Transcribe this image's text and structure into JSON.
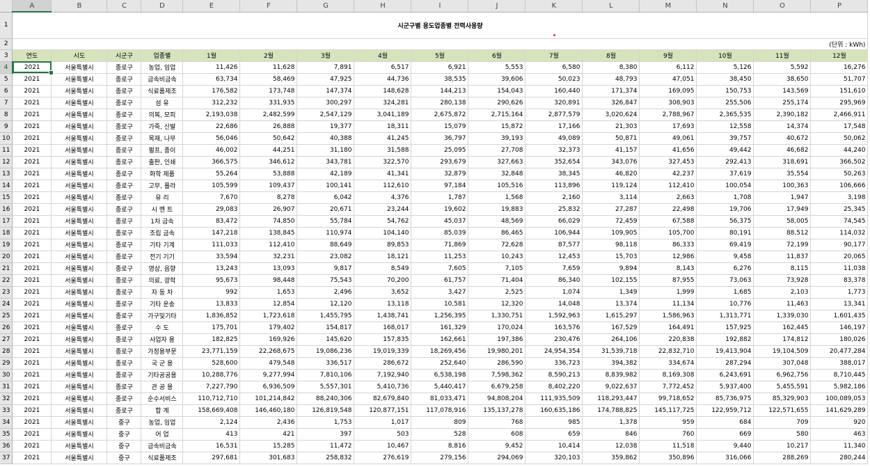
{
  "sheet": {
    "title": "시군구별 용도업종별 전력사용량",
    "unit_note": "(단위 : kWh)",
    "column_letters": [
      "A",
      "B",
      "C",
      "D",
      "E",
      "F",
      "G",
      "H",
      "I",
      "J",
      "K",
      "L",
      "M",
      "N",
      "O",
      "P"
    ],
    "row_numbers": [
      "1",
      "2",
      "3",
      "4",
      "5",
      "6",
      "7",
      "8",
      "9",
      "10",
      "11",
      "12",
      "13",
      "14",
      "15",
      "16",
      "17",
      "18",
      "19",
      "20",
      "21",
      "22",
      "23",
      "24",
      "25",
      "26",
      "27",
      "28",
      "29",
      "30",
      "31",
      "32",
      "33",
      "34",
      "35",
      "36",
      "37"
    ],
    "headers": [
      "연도",
      "시도",
      "시군구",
      "업종별",
      "1월",
      "2월",
      "3월",
      "4월",
      "5월",
      "6월",
      "7월",
      "8월",
      "9월",
      "10월",
      "11월",
      "12월"
    ],
    "rows": [
      [
        "2021",
        "서울특별시",
        "종로구",
        "농업, 임업",
        "11,426",
        "11,628",
        "7,891",
        "6,517",
        "6,921",
        "5,553",
        "6,580",
        "8,380",
        "6,112",
        "5,126",
        "5,592",
        "16,276"
      ],
      [
        "2021",
        "서울특별시",
        "종로구",
        "금속비금속",
        "63,734",
        "58,469",
        "47,925",
        "44,736",
        "38,535",
        "39,606",
        "50,023",
        "48,793",
        "47,051",
        "38,450",
        "38,650",
        "51,707"
      ],
      [
        "2021",
        "서울특별시",
        "종로구",
        "식료품제조",
        "176,582",
        "173,748",
        "147,374",
        "148,628",
        "144,213",
        "154,043",
        "160,440",
        "171,374",
        "169,095",
        "150,753",
        "143,569",
        "151,610"
      ],
      [
        "2021",
        "서울특별시",
        "종로구",
        "섬      유",
        "312,232",
        "331,935",
        "300,297",
        "324,281",
        "280,138",
        "290,626",
        "320,891",
        "326,847",
        "308,903",
        "255,506",
        "255,174",
        "295,969"
      ],
      [
        "2021",
        "서울특별시",
        "종로구",
        "의복, 모피",
        "2,193,038",
        "2,482,599",
        "2,547,129",
        "3,041,189",
        "2,675,872",
        "2,715,164",
        "2,877,579",
        "3,020,624",
        "2,788,967",
        "2,365,535",
        "2,390,182",
        "2,466,911"
      ],
      [
        "2021",
        "서울특별시",
        "종로구",
        "가죽, 신발",
        "22,686",
        "26,888",
        "19,377",
        "18,311",
        "15,079",
        "15,872",
        "17,166",
        "21,303",
        "17,693",
        "12,558",
        "14,374",
        "17,548"
      ],
      [
        "2021",
        "서울특별시",
        "종로구",
        "목재, 나무",
        "56,046",
        "50,642",
        "40,388",
        "41,245",
        "36,797",
        "39,193",
        "49,089",
        "50,871",
        "49,061",
        "39,757",
        "40,672",
        "50,062"
      ],
      [
        "2021",
        "서울특별시",
        "종로구",
        "펄프, 종이",
        "46,002",
        "44,251",
        "31,180",
        "31,588",
        "25,095",
        "27,708",
        "32,373",
        "41,157",
        "41,656",
        "49,442",
        "46,682",
        "44,240"
      ],
      [
        "2021",
        "서울특별시",
        "종로구",
        "출판, 인쇄",
        "366,575",
        "346,612",
        "343,781",
        "322,570",
        "293,679",
        "327,663",
        "352,654",
        "343,076",
        "327,453",
        "292,413",
        "318,691",
        "366,502"
      ],
      [
        "2021",
        "서울특별시",
        "종로구",
        "화학  제품",
        "55,264",
        "53,888",
        "42,189",
        "41,341",
        "32,879",
        "32,848",
        "38,345",
        "46,820",
        "42,237",
        "37,619",
        "35,554",
        "50,263"
      ],
      [
        "2021",
        "서울특별시",
        "종로구",
        "고무, 플라",
        "105,599",
        "109,437",
        "100,141",
        "112,610",
        "97,184",
        "105,516",
        "113,896",
        "119,124",
        "112,410",
        "100,054",
        "100,363",
        "106,666"
      ],
      [
        "2021",
        "서울특별시",
        "종로구",
        "유      리",
        "7,670",
        "8,278",
        "6,042",
        "4,376",
        "1,787",
        "1,568",
        "2,160",
        "3,114",
        "2,663",
        "1,708",
        "1,947",
        "3,198"
      ],
      [
        "2021",
        "서울특별시",
        "종로구",
        "시  멘  트",
        "29,083",
        "26,907",
        "20,671",
        "23,244",
        "19,602",
        "19,883",
        "25,832",
        "27,287",
        "22,498",
        "19,706",
        "17,949",
        "25,345"
      ],
      [
        "2021",
        "서울특별시",
        "종로구",
        "1차  금속",
        "83,472",
        "74,850",
        "55,784",
        "54,762",
        "45,037",
        "48,569",
        "66,029",
        "72,459",
        "67,588",
        "56,375",
        "58,005",
        "74,545"
      ],
      [
        "2021",
        "서울특별시",
        "종로구",
        "조립  금속",
        "147,218",
        "138,845",
        "110,974",
        "104,140",
        "85,039",
        "86,465",
        "106,944",
        "109,905",
        "105,700",
        "80,191",
        "88,512",
        "114,032"
      ],
      [
        "2021",
        "서울특별시",
        "종로구",
        "기타  기계",
        "111,033",
        "112,410",
        "88,649",
        "89,853",
        "71,869",
        "72,628",
        "87,577",
        "98,118",
        "86,333",
        "69,419",
        "72,199",
        "90,177"
      ],
      [
        "2021",
        "서울특별시",
        "종로구",
        "전기  기기",
        "33,594",
        "32,231",
        "23,082",
        "18,121",
        "11,253",
        "10,243",
        "12,453",
        "15,703",
        "12,986",
        "9,458",
        "11,837",
        "20,065"
      ],
      [
        "2021",
        "서울특별시",
        "종로구",
        "영상, 음향",
        "13,243",
        "13,093",
        "9,817",
        "8,549",
        "7,605",
        "7,105",
        "7,659",
        "9,894",
        "8,143",
        "6,276",
        "8,115",
        "11,038"
      ],
      [
        "2021",
        "서울특별시",
        "종로구",
        "의료, 광학",
        "95,673",
        "98,448",
        "75,543",
        "70,200",
        "61,757",
        "71,404",
        "86,340",
        "102,155",
        "87,955",
        "73,063",
        "73,928",
        "83,378"
      ],
      [
        "2021",
        "서울특별시",
        "종로구",
        "자  동  차",
        "992",
        "1,653",
        "2,496",
        "3,652",
        "3,427",
        "2,525",
        "1,074",
        "1,349",
        "1,999",
        "1,685",
        "2,103",
        "1,773"
      ],
      [
        "2021",
        "서울특별시",
        "종로구",
        "기타  운송",
        "13,833",
        "12,854",
        "12,120",
        "13,118",
        "10,581",
        "12,320",
        "14,048",
        "13,374",
        "11,134",
        "10,776",
        "11,463",
        "13,341"
      ],
      [
        "2021",
        "서울특별시",
        "종로구",
        "가구및기타",
        "1,836,852",
        "1,723,618",
        "1,455,795",
        "1,438,741",
        "1,256,395",
        "1,330,751",
        "1,592,963",
        "1,615,297",
        "1,586,963",
        "1,313,771",
        "1,339,030",
        "1,601,435"
      ],
      [
        "2021",
        "서울특별시",
        "종로구",
        "수      도",
        "175,701",
        "179,402",
        "154,817",
        "168,017",
        "161,329",
        "170,024",
        "163,576",
        "167,529",
        "164,491",
        "157,925",
        "162,445",
        "146,197"
      ],
      [
        "2021",
        "서울특별시",
        "종로구",
        "사업자  용",
        "182,825",
        "169,926",
        "145,620",
        "157,835",
        "162,661",
        "197,386",
        "230,476",
        "264,106",
        "220,838",
        "192,882",
        "174,812",
        "180,026"
      ],
      [
        "2021",
        "서울특별시",
        "종로구",
        "가정용부문",
        "23,771,159",
        "22,268,675",
        "19,086,236",
        "19,019,339",
        "18,269,456",
        "19,980,201",
        "24,954,354",
        "31,539,718",
        "22,832,710",
        "19,413,904",
        "19,104,509",
        "20,477,284"
      ],
      [
        "2021",
        "서울특별시",
        "종로구",
        "국  군  용",
        "528,600",
        "479,548",
        "336,517",
        "286,672",
        "252,640",
        "286,590",
        "336,723",
        "394,382",
        "334,674",
        "287,294",
        "307,048",
        "388,017"
      ],
      [
        "2021",
        "서울특별시",
        "종로구",
        "기타공공용",
        "10,288,776",
        "9,277,994",
        "7,810,106",
        "7,192,940",
        "6,538,198",
        "7,598,362",
        "8,590,213",
        "8,839,982",
        "8,169,308",
        "6,243,691",
        "6,962,756",
        "8,710,445"
      ],
      [
        "2021",
        "서울특별시",
        "종로구",
        "관  공  용",
        "7,227,790",
        "6,936,509",
        "5,557,301",
        "5,410,736",
        "5,440,417",
        "6,679,258",
        "8,402,220",
        "9,022,637",
        "7,772,452",
        "5,937,400",
        "5,455,591",
        "5,982,186"
      ],
      [
        "2021",
        "서울특별시",
        "종로구",
        "순수서비스",
        "110,712,710",
        "101,214,842",
        "88,240,306",
        "82,679,840",
        "81,033,471",
        "94,808,204",
        "111,935,509",
        "118,293,447",
        "99,718,652",
        "85,736,975",
        "85,329,903",
        "100,089,053"
      ],
      [
        "2021",
        "서울특별시",
        "종로구",
        "합      계",
        "158,669,408",
        "146,460,180",
        "126,819,548",
        "120,877,151",
        "117,078,916",
        "135,137,278",
        "160,635,186",
        "174,788,825",
        "145,117,725",
        "122,959,712",
        "122,571,655",
        "141,629,289"
      ],
      [
        "2021",
        "서울특별시",
        "중구",
        "농업, 임업",
        "2,124",
        "2,436",
        "1,753",
        "1,017",
        "809",
        "768",
        "985",
        "1,378",
        "959",
        "684",
        "709",
        "920"
      ],
      [
        "2021",
        "서울특별시",
        "중구",
        "어      업",
        "413",
        "421",
        "397",
        "503",
        "528",
        "608",
        "659",
        "846",
        "760",
        "669",
        "580",
        "463"
      ],
      [
        "2021",
        "서울특별시",
        "중구",
        "금속비금속",
        "16,531",
        "15,285",
        "11,472",
        "10,467",
        "8,816",
        "9,452",
        "10,414",
        "12,038",
        "11,518",
        "9,440",
        "10,217",
        "11,340"
      ],
      [
        "2021",
        "서울특별시",
        "중구",
        "식료품제조",
        "297,681",
        "301,683",
        "258,832",
        "276,619",
        "279,156",
        "294,069",
        "320,103",
        "359,862",
        "350,896",
        "316,066",
        "288,269",
        "280,244"
      ]
    ]
  }
}
